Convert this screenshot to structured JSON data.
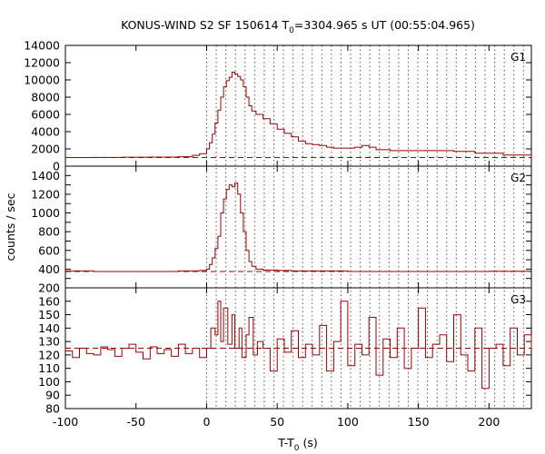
{
  "chart_data": {
    "type": "line",
    "style": "histogram-steps",
    "title": {
      "main": "KONUS-WIND S2 SF 150614 T",
      "sub": "0",
      "rest": "=3304.965 s UT (00:55:04.965)"
    },
    "xlabel": {
      "main": "T-T",
      "sub": "0",
      "rest": " (s)"
    },
    "ylabel": "counts / sec",
    "xlim": [
      -100,
      230
    ],
    "x_ticks": [
      "-100",
      "-50",
      "0",
      "50",
      "100",
      "150",
      "200"
    ],
    "colors": {
      "series": "#990000",
      "background_line": "#990000",
      "vlines": "#555555",
      "frame": "#000000"
    },
    "vertical_lines_x": [
      0,
      6.8,
      13.6,
      20.4,
      27.2,
      34,
      40.8,
      47.6,
      54.4,
      61.2,
      68,
      74.8,
      81.6,
      88.4,
      95.2,
      102,
      108.8,
      115.6,
      122.4,
      129.2,
      136,
      142.8,
      149.6,
      156.4,
      163.2,
      170,
      176.8,
      183.6,
      190.4,
      197.2,
      204,
      210.8,
      217.6,
      224.4
    ],
    "panels": [
      {
        "name": "G1",
        "ylim": [
          0,
          14000
        ],
        "y_ticks": [
          "0",
          "2000",
          "4000",
          "6000",
          "8000",
          "10000",
          "12000",
          "14000"
        ],
        "background_level": 1000,
        "points": [
          [
            -100,
            1000
          ],
          [
            -80,
            1010
          ],
          [
            -60,
            1040
          ],
          [
            -40,
            1050
          ],
          [
            -20,
            1100
          ],
          [
            -10,
            1250
          ],
          [
            -5,
            1450
          ],
          [
            0,
            2000
          ],
          [
            2,
            2700
          ],
          [
            4,
            3700
          ],
          [
            6,
            5000
          ],
          [
            8,
            6500
          ],
          [
            10,
            8000
          ],
          [
            12,
            9200
          ],
          [
            14,
            9900
          ],
          [
            16,
            10300
          ],
          [
            18,
            10900
          ],
          [
            20,
            10700
          ],
          [
            22,
            10400
          ],
          [
            24,
            10000
          ],
          [
            26,
            9200
          ],
          [
            28,
            8000
          ],
          [
            30,
            7000
          ],
          [
            32,
            6400
          ],
          [
            35,
            6000
          ],
          [
            40,
            5500
          ],
          [
            45,
            4900
          ],
          [
            50,
            4300
          ],
          [
            55,
            3800
          ],
          [
            60,
            3400
          ],
          [
            65,
            2900
          ],
          [
            70,
            2600
          ],
          [
            75,
            2500
          ],
          [
            80,
            2400
          ],
          [
            85,
            2200
          ],
          [
            90,
            2100
          ],
          [
            100,
            2100
          ],
          [
            105,
            2200
          ],
          [
            110,
            2400
          ],
          [
            115,
            2200
          ],
          [
            120,
            1900
          ],
          [
            130,
            1800
          ],
          [
            150,
            1800
          ],
          [
            175,
            1700
          ],
          [
            190,
            1500
          ],
          [
            210,
            1300
          ],
          [
            230,
            1200
          ]
        ]
      },
      {
        "name": "G2",
        "ylim": [
          200,
          1500
        ],
        "y_ticks": [
          "200",
          "300",
          "400",
          "500",
          "600",
          "700",
          "800",
          "900",
          "1000",
          "1100",
          "1200",
          "1300",
          "1400"
        ],
        "y_tick_labels_shown": [
          "200",
          "400",
          "600",
          "800",
          "1000",
          "1200",
          "1400"
        ],
        "background_level": 375,
        "points": [
          [
            -100,
            380
          ],
          [
            -80,
            375
          ],
          [
            -60,
            375
          ],
          [
            -40,
            375
          ],
          [
            -20,
            380
          ],
          [
            -5,
            385
          ],
          [
            0,
            400
          ],
          [
            2,
            450
          ],
          [
            4,
            520
          ],
          [
            6,
            620
          ],
          [
            8,
            750
          ],
          [
            10,
            1000
          ],
          [
            12,
            1150
          ],
          [
            14,
            1250
          ],
          [
            16,
            1300
          ],
          [
            18,
            1280
          ],
          [
            20,
            1320
          ],
          [
            22,
            1200
          ],
          [
            24,
            1000
          ],
          [
            26,
            800
          ],
          [
            28,
            600
          ],
          [
            30,
            480
          ],
          [
            32,
            430
          ],
          [
            35,
            400
          ],
          [
            40,
            390
          ],
          [
            50,
            385
          ],
          [
            60,
            380
          ],
          [
            80,
            380
          ],
          [
            100,
            375
          ],
          [
            150,
            375
          ],
          [
            200,
            378
          ],
          [
            230,
            380
          ]
        ]
      },
      {
        "name": "G3",
        "ylim": [
          80,
          170
        ],
        "y_ticks": [
          "80",
          "90",
          "100",
          "110",
          "120",
          "130",
          "140",
          "150",
          "160"
        ],
        "background_level": 125,
        "points": [
          [
            -100,
            123
          ],
          [
            -95,
            118
          ],
          [
            -90,
            125
          ],
          [
            -85,
            121
          ],
          [
            -80,
            120
          ],
          [
            -75,
            126
          ],
          [
            -70,
            124
          ],
          [
            -65,
            119
          ],
          [
            -60,
            125
          ],
          [
            -55,
            128
          ],
          [
            -50,
            122
          ],
          [
            -45,
            117
          ],
          [
            -40,
            126
          ],
          [
            -35,
            121
          ],
          [
            -30,
            124
          ],
          [
            -25,
            119
          ],
          [
            -20,
            128
          ],
          [
            -15,
            121
          ],
          [
            -10,
            125
          ],
          [
            -5,
            118
          ],
          [
            0,
            125
          ],
          [
            3,
            140
          ],
          [
            6,
            135
          ],
          [
            8,
            160
          ],
          [
            10,
            130
          ],
          [
            12,
            155
          ],
          [
            15,
            128
          ],
          [
            18,
            150
          ],
          [
            20,
            125
          ],
          [
            23,
            140
          ],
          [
            25,
            118
          ],
          [
            28,
            135
          ],
          [
            30,
            148
          ],
          [
            33,
            120
          ],
          [
            36,
            130
          ],
          [
            40,
            125
          ],
          [
            45,
            108
          ],
          [
            50,
            132
          ],
          [
            55,
            122
          ],
          [
            60,
            138
          ],
          [
            65,
            118
          ],
          [
            70,
            128
          ],
          [
            75,
            120
          ],
          [
            80,
            142
          ],
          [
            85,
            108
          ],
          [
            90,
            130
          ],
          [
            95,
            160
          ],
          [
            100,
            112
          ],
          [
            105,
            128
          ],
          [
            110,
            120
          ],
          [
            115,
            148
          ],
          [
            120,
            105
          ],
          [
            125,
            132
          ],
          [
            130,
            118
          ],
          [
            135,
            140
          ],
          [
            140,
            110
          ],
          [
            145,
            125
          ],
          [
            150,
            155
          ],
          [
            155,
            118
          ],
          [
            160,
            128
          ],
          [
            165,
            135
          ],
          [
            170,
            115
          ],
          [
            175,
            150
          ],
          [
            180,
            120
          ],
          [
            185,
            108
          ],
          [
            190,
            140
          ],
          [
            195,
            95
          ],
          [
            200,
            125
          ],
          [
            205,
            128
          ],
          [
            210,
            112
          ],
          [
            215,
            140
          ],
          [
            220,
            120
          ],
          [
            225,
            135
          ],
          [
            230,
            125
          ]
        ]
      }
    ]
  }
}
